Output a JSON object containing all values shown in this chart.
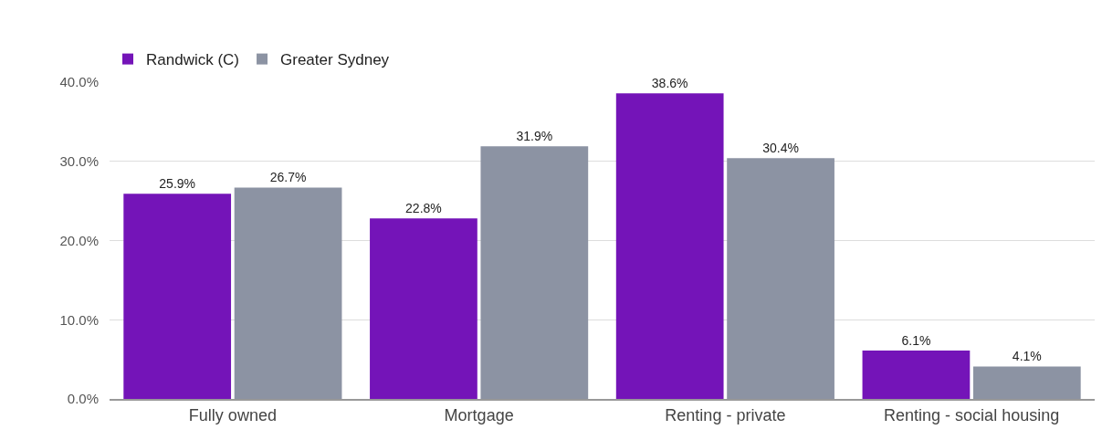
{
  "chart_data": {
    "type": "bar",
    "categories": [
      "Fully owned",
      "Mortgage",
      "Renting - private",
      "Renting - social housing"
    ],
    "series": [
      {
        "name": "Randwick (C)",
        "color": "#7414b8",
        "values": [
          25.9,
          22.8,
          38.6,
          6.1
        ],
        "value_labels": [
          "25.9%",
          "22.8%",
          "38.6%",
          "6.1%"
        ]
      },
      {
        "name": "Greater Sydney",
        "color": "#8c93a3",
        "values": [
          26.7,
          31.9,
          30.4,
          4.1
        ],
        "value_labels": [
          "26.7%",
          "31.9%",
          "30.4%",
          "4.1%"
        ]
      }
    ],
    "ylim": [
      0,
      40
    ],
    "yticks": [
      {
        "value": 0,
        "label": "0.0%"
      },
      {
        "value": 10,
        "label": "10.0%"
      },
      {
        "value": 20,
        "label": "20.0%"
      },
      {
        "value": 30,
        "label": "30.0%"
      },
      {
        "value": 40,
        "label": "40.0%"
      }
    ],
    "grid": "y",
    "legend": "top left"
  }
}
